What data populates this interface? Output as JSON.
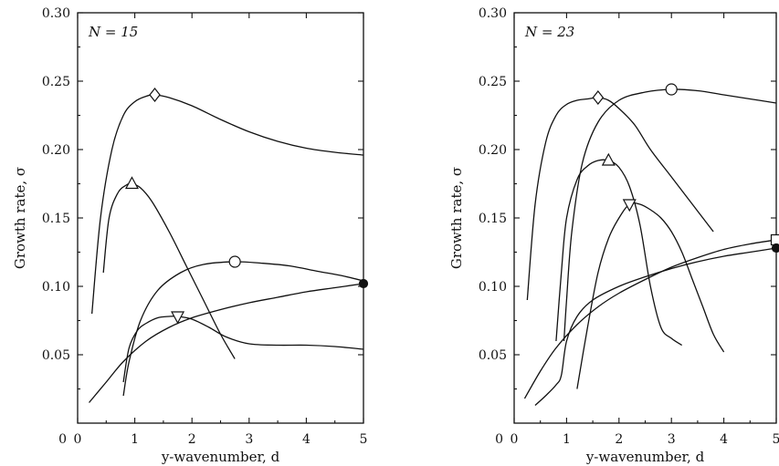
{
  "chart_data": [
    {
      "type": "line",
      "panel_label": "N = 15",
      "xlabel": "y-wavenumber, d",
      "ylabel": "Growth rate, σ",
      "xlim": [
        0,
        5
      ],
      "ylim": [
        0,
        0.3
      ],
      "xticks": [
        "0",
        "1",
        "2",
        "3",
        "4",
        "5"
      ],
      "yticks": [
        "0.05",
        "0.10",
        "0.15",
        "0.20",
        "0.25",
        "0.30"
      ],
      "grid": false,
      "legend": "none",
      "series": [
        {
          "marker": "diamond",
          "marker_at": [
            1.35,
            0.24
          ],
          "x": [
            0.25,
            0.4,
            0.6,
            0.8,
            1.0,
            1.2,
            1.35,
            1.6,
            2.0,
            2.5,
            3.0,
            3.5,
            4.0,
            4.5,
            5.0
          ],
          "y": [
            0.08,
            0.15,
            0.2,
            0.225,
            0.235,
            0.239,
            0.24,
            0.238,
            0.232,
            0.222,
            0.213,
            0.206,
            0.201,
            0.198,
            0.196
          ]
        },
        {
          "marker": "triangle-up",
          "marker_at": [
            0.95,
            0.175
          ],
          "x": [
            0.45,
            0.55,
            0.7,
            0.85,
            0.95,
            1.1,
            1.3,
            1.6,
            1.9,
            2.2,
            2.5,
            2.75
          ],
          "y": [
            0.11,
            0.15,
            0.168,
            0.174,
            0.175,
            0.172,
            0.162,
            0.14,
            0.115,
            0.09,
            0.065,
            0.047
          ]
        },
        {
          "marker": "circle",
          "marker_at": [
            2.75,
            0.118
          ],
          "x": [
            0.8,
            0.9,
            1.1,
            1.4,
            1.8,
            2.2,
            2.75,
            3.2,
            3.7,
            4.2,
            4.6,
            5.0
          ],
          "y": [
            0.02,
            0.045,
            0.075,
            0.097,
            0.11,
            0.116,
            0.118,
            0.117,
            0.115,
            0.111,
            0.108,
            0.104
          ]
        },
        {
          "marker": "filled-circle",
          "marker_at": [
            5.0,
            0.102
          ],
          "x": [
            0.2,
            0.5,
            0.8,
            1.2,
            1.6,
            2.0,
            2.5,
            3.0,
            3.5,
            4.0,
            4.5,
            5.0
          ],
          "y": [
            0.015,
            0.03,
            0.045,
            0.06,
            0.07,
            0.077,
            0.083,
            0.088,
            0.092,
            0.096,
            0.099,
            0.102
          ]
        },
        {
          "marker": "triangle-down",
          "marker_at": [
            1.75,
            0.078
          ],
          "x": [
            0.8,
            0.9,
            1.05,
            1.2,
            1.4,
            1.6,
            1.75,
            2.0,
            2.3,
            2.6,
            3.0,
            3.5,
            4.0,
            4.5,
            5.0
          ],
          "y": [
            0.03,
            0.055,
            0.068,
            0.073,
            0.077,
            0.078,
            0.078,
            0.076,
            0.07,
            0.063,
            0.058,
            0.057,
            0.057,
            0.056,
            0.054
          ]
        }
      ]
    },
    {
      "type": "line",
      "panel_label": "N = 23",
      "xlabel": "y-wavenumber, d",
      "ylabel": "Growth rate, σ",
      "xlim": [
        0,
        5
      ],
      "ylim": [
        0,
        0.3
      ],
      "xticks": [
        "0",
        "1",
        "2",
        "3",
        "4",
        "5"
      ],
      "yticks": [
        "0.05",
        "0.10",
        "0.15",
        "0.20",
        "0.25",
        "0.30"
      ],
      "grid": false,
      "legend": "none",
      "series": [
        {
          "marker": "diamond",
          "marker_at": [
            1.6,
            0.238
          ],
          "x": [
            0.25,
            0.4,
            0.6,
            0.8,
            1.0,
            1.2,
            1.4,
            1.6,
            1.8,
            2.0,
            2.3,
            2.6,
            3.0,
            3.4,
            3.8
          ],
          "y": [
            0.09,
            0.16,
            0.205,
            0.225,
            0.233,
            0.236,
            0.237,
            0.238,
            0.236,
            0.23,
            0.218,
            0.2,
            0.18,
            0.16,
            0.14
          ]
        },
        {
          "marker": "circle",
          "marker_at": [
            3.0,
            0.244
          ],
          "x": [
            0.95,
            1.0,
            1.1,
            1.3,
            1.6,
            2.0,
            2.5,
            3.0,
            3.5,
            4.0,
            4.5,
            5.0
          ],
          "y": [
            0.06,
            0.09,
            0.14,
            0.19,
            0.22,
            0.236,
            0.242,
            0.244,
            0.243,
            0.24,
            0.237,
            0.234
          ]
        },
        {
          "marker": "triangle-up",
          "marker_at": [
            1.8,
            0.192
          ],
          "x": [
            0.8,
            0.9,
            1.0,
            1.2,
            1.4,
            1.6,
            1.8,
            2.0,
            2.2,
            2.4,
            2.6,
            2.8,
            3.0,
            3.2
          ],
          "y": [
            0.06,
            0.11,
            0.15,
            0.178,
            0.188,
            0.192,
            0.192,
            0.187,
            0.173,
            0.145,
            0.1,
            0.07,
            0.062,
            0.057
          ]
        },
        {
          "marker": "triangle-down",
          "marker_at": [
            2.2,
            0.16
          ],
          "x": [
            1.2,
            1.4,
            1.6,
            1.8,
            2.0,
            2.2,
            2.4,
            2.6,
            2.8,
            3.0,
            3.2,
            3.4,
            3.6,
            3.8,
            4.0
          ],
          "y": [
            0.025,
            0.07,
            0.11,
            0.135,
            0.15,
            0.16,
            0.16,
            0.156,
            0.15,
            0.14,
            0.125,
            0.105,
            0.085,
            0.065,
            0.052
          ]
        },
        {
          "marker": "square",
          "marker_at": [
            5.0,
            0.134
          ],
          "x": [
            0.2,
            0.5,
            0.8,
            1.2,
            1.6,
            2.0,
            2.5,
            3.0,
            3.5,
            4.0,
            4.5,
            5.0
          ],
          "y": [
            0.018,
            0.038,
            0.055,
            0.072,
            0.085,
            0.095,
            0.105,
            0.114,
            0.121,
            0.127,
            0.131,
            0.134
          ]
        },
        {
          "marker": "filled-circle",
          "marker_at": [
            5.0,
            0.128
          ],
          "x": [
            0.4,
            0.6,
            0.8,
            0.9,
            1.0,
            1.2,
            1.5,
            2.0,
            2.5,
            3.0,
            3.5,
            4.0,
            4.5,
            5.0
          ],
          "y": [
            0.013,
            0.02,
            0.028,
            0.035,
            0.06,
            0.078,
            0.09,
            0.1,
            0.107,
            0.113,
            0.118,
            0.122,
            0.125,
            0.128
          ]
        }
      ]
    }
  ]
}
